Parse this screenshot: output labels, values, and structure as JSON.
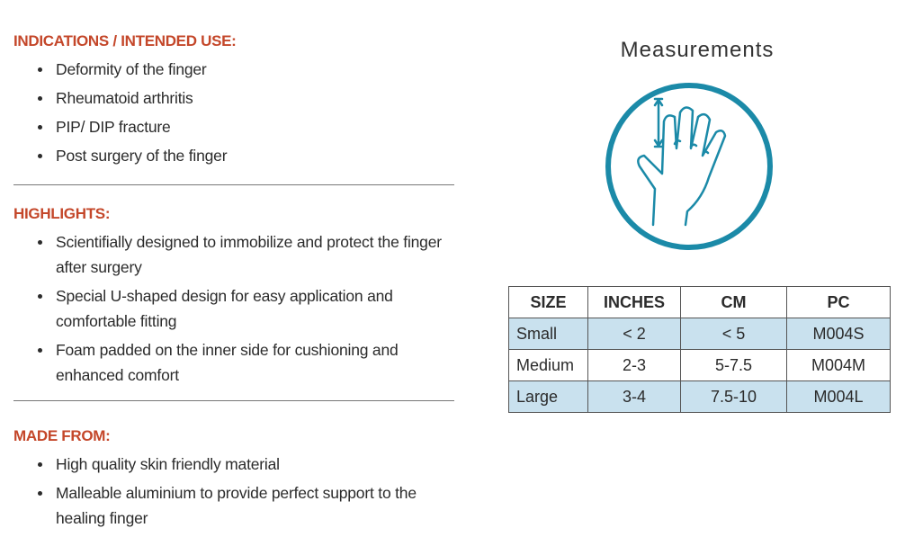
{
  "sections": [
    {
      "heading": "INDICATIONS / INTENDED USE:",
      "items": [
        "Deformity of the finger",
        "Rheumatoid arthritis",
        "PIP/ DIP fracture",
        "Post surgery of the finger"
      ]
    },
    {
      "heading": "HIGHLIGHTS:",
      "items": [
        "Scientifially designed to immobilize and protect the finger after surgery",
        "Special U-shaped design for easy application and comfortable fitting",
        "Foam padded on the inner side for cushioning and enhanced comfort"
      ]
    },
    {
      "heading": "MADE FROM:",
      "items": [
        "High quality skin friendly material",
        "Malleable aluminium to provide perfect  support to the healing finger"
      ]
    }
  ],
  "measurements": {
    "title": "Measurements",
    "table": {
      "header": [
        "SIZE",
        "INCHES",
        "CM",
        "PC"
      ],
      "rows": [
        [
          "Small",
          "< 2",
          "< 5",
          "M004S"
        ],
        [
          "Medium",
          "2-3",
          "5-7.5",
          "M004M"
        ],
        [
          "Large",
          "3-4",
          "7.5-10",
          "M004L"
        ]
      ]
    }
  }
}
